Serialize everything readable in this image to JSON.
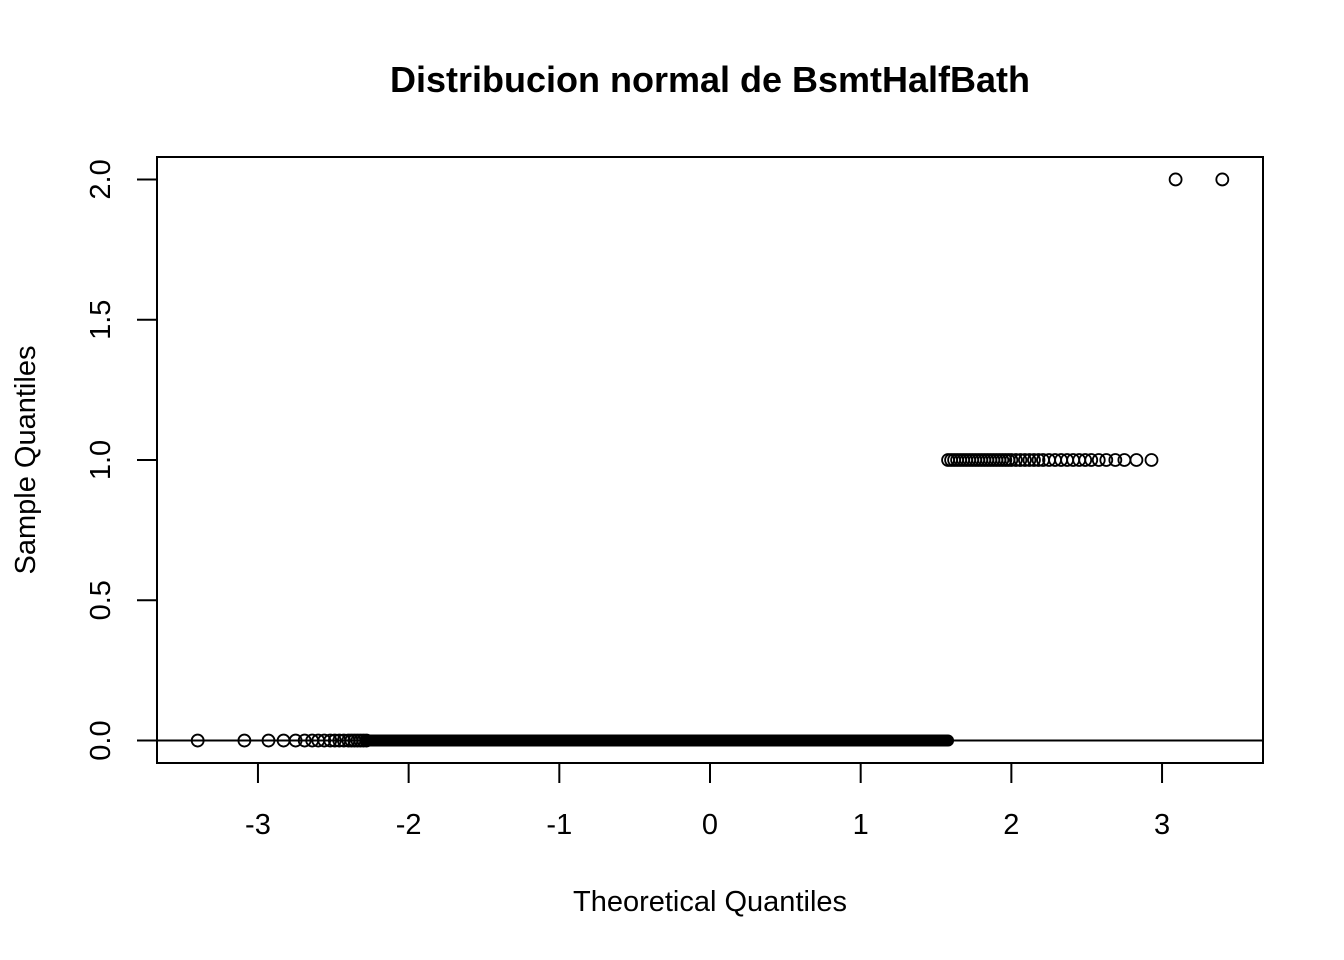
{
  "chart_data": {
    "type": "scatter",
    "title": "Distribucion normal de BsmtHalfBath",
    "xlabel": "Theoretical Quantiles",
    "ylabel": "Sample Quantiles",
    "xlim": [
      -3.67,
      3.67
    ],
    "ylim": [
      -0.08,
      2.08
    ],
    "x_ticks": [
      -3,
      -2,
      -1,
      0,
      1,
      2,
      3
    ],
    "x_tick_labels": [
      "-3",
      "-2",
      "-1",
      "0",
      "1",
      "2",
      "3"
    ],
    "y_ticks": [
      0.0,
      0.5,
      1.0,
      1.5,
      2.0
    ],
    "y_tick_labels": [
      "0.0",
      "0.5",
      "1.0",
      "1.5",
      "2.0"
    ],
    "grid": false,
    "marker": "open-circle",
    "reference_line": {
      "intercept": 0,
      "slope": 0
    },
    "series": [
      {
        "points": [
          [
            -3.4,
            0
          ],
          [
            -3.09,
            0
          ],
          [
            -2.93,
            0
          ],
          [
            -2.83,
            0
          ],
          [
            -2.75,
            0
          ],
          [
            -2.69,
            0
          ],
          [
            -2.64,
            0
          ],
          [
            -2.6,
            0
          ],
          [
            -2.56,
            0
          ],
          [
            -2.52,
            0
          ],
          [
            -2.49,
            0
          ],
          [
            -2.46,
            0
          ],
          [
            -2.43,
            0
          ],
          [
            -2.4,
            0
          ],
          [
            -2.38,
            0
          ],
          [
            -2.36,
            0
          ],
          [
            -2.34,
            0
          ],
          [
            -2.32,
            0
          ],
          [
            -2.3,
            0
          ],
          [
            -2.28,
            0
          ],
          [
            1.58,
            1
          ],
          [
            1.6,
            1
          ],
          [
            1.62,
            1
          ],
          [
            1.64,
            1
          ],
          [
            1.66,
            1
          ],
          [
            1.68,
            1
          ],
          [
            1.7,
            1
          ],
          [
            1.72,
            1
          ],
          [
            1.74,
            1
          ],
          [
            1.76,
            1
          ],
          [
            1.78,
            1
          ],
          [
            1.8,
            1
          ],
          [
            1.82,
            1
          ],
          [
            1.84,
            1
          ],
          [
            1.86,
            1
          ],
          [
            1.88,
            1
          ],
          [
            1.9,
            1
          ],
          [
            1.92,
            1
          ],
          [
            1.94,
            1
          ],
          [
            1.96,
            1
          ],
          [
            1.98,
            1
          ],
          [
            2.0,
            1
          ],
          [
            2.03,
            1
          ],
          [
            2.06,
            1
          ],
          [
            2.09,
            1
          ],
          [
            2.12,
            1
          ],
          [
            2.15,
            1
          ],
          [
            2.18,
            1
          ],
          [
            2.21,
            1
          ],
          [
            2.25,
            1
          ],
          [
            2.29,
            1
          ],
          [
            2.33,
            1
          ],
          [
            2.37,
            1
          ],
          [
            2.41,
            1
          ],
          [
            2.45,
            1
          ],
          [
            2.49,
            1
          ],
          [
            2.53,
            1
          ],
          [
            2.58,
            1
          ],
          [
            2.63,
            1
          ],
          [
            2.69,
            1
          ],
          [
            2.75,
            1
          ],
          [
            2.83,
            1
          ],
          [
            2.93,
            1
          ],
          [
            3.09,
            2
          ],
          [
            3.4,
            2
          ]
        ],
        "dense_runs": [
          {
            "x_from": -2.28,
            "x_to": 1.58,
            "y": 0
          }
        ]
      }
    ]
  }
}
